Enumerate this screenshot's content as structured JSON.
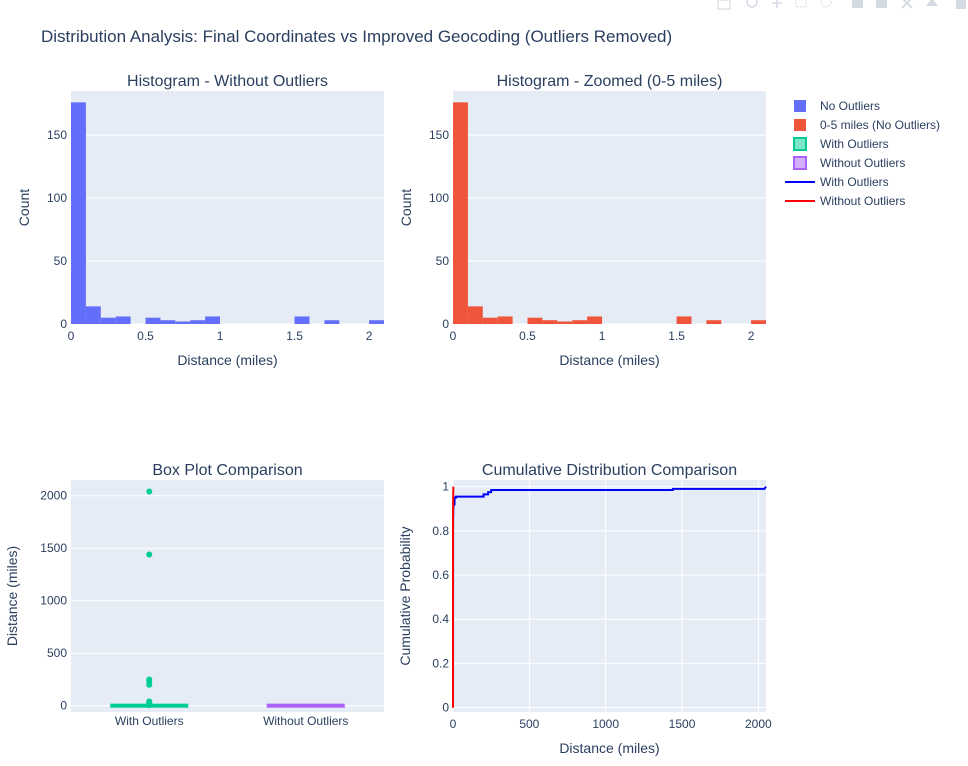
{
  "title": "Distribution Analysis: Final Coordinates vs Improved Geocoding (Outliers Removed)",
  "legend": {
    "position": "right",
    "items": [
      {
        "label": "No Outliers",
        "kind": "bar",
        "color": "#636efa"
      },
      {
        "label": "0-5 miles (No Outliers)",
        "kind": "bar",
        "color": "#ef553b"
      },
      {
        "label": "With Outliers",
        "kind": "box",
        "color": "#00cc96"
      },
      {
        "label": "Without Outliers",
        "kind": "box",
        "color": "#ab63fa"
      },
      {
        "label": "With Outliers",
        "kind": "line",
        "color": "#0000ff"
      },
      {
        "label": "Without Outliers",
        "kind": "line",
        "color": "#ff0000"
      }
    ]
  },
  "chart_data": [
    {
      "type": "bar",
      "title": "Histogram - Without Outliers",
      "xlabel": "Distance (miles)",
      "ylabel": "Count",
      "xlim": [
        0,
        2.1
      ],
      "ylim": [
        0,
        185
      ],
      "x_ticks": [
        "0",
        "0.5",
        "1",
        "1.5",
        "2"
      ],
      "y_ticks": [
        "0",
        "50",
        "100",
        "150"
      ],
      "bin_width": 0.1,
      "bin_starts": [
        0,
        0.1,
        0.2,
        0.3,
        0.4,
        0.5,
        0.6,
        0.7,
        0.8,
        0.9,
        1.0,
        1.1,
        1.2,
        1.3,
        1.4,
        1.5,
        1.6,
        1.7,
        1.8,
        1.9,
        2.0
      ],
      "values": [
        176,
        14,
        5,
        6,
        0,
        5,
        3,
        2,
        3,
        6,
        0,
        0,
        0,
        0,
        0,
        6,
        0,
        3,
        0,
        0,
        3
      ],
      "color": "#636efa",
      "series_name": "No Outliers"
    },
    {
      "type": "bar",
      "title": "Histogram - Zoomed (0-5 miles)",
      "xlabel": "Distance (miles)",
      "ylabel": "Count",
      "xlim": [
        0,
        2.1
      ],
      "ylim": [
        0,
        185
      ],
      "x_ticks": [
        "0",
        "0.5",
        "1",
        "1.5",
        "2"
      ],
      "y_ticks": [
        "0",
        "50",
        "100",
        "150"
      ],
      "bin_width": 0.1,
      "bin_starts": [
        0,
        0.1,
        0.2,
        0.3,
        0.4,
        0.5,
        0.6,
        0.7,
        0.8,
        0.9,
        1.0,
        1.1,
        1.2,
        1.3,
        1.4,
        1.5,
        1.6,
        1.7,
        1.8,
        1.9,
        2.0
      ],
      "values": [
        176,
        14,
        5,
        6,
        0,
        5,
        3,
        2,
        3,
        6,
        0,
        0,
        0,
        0,
        0,
        6,
        0,
        3,
        0,
        0,
        3
      ],
      "color": "#ef553b",
      "series_name": "0-5 miles (No Outliers)"
    },
    {
      "type": "box",
      "title": "Box Plot Comparison",
      "xlabel": "",
      "ylabel": "Distance (miles)",
      "ylim": [
        -60,
        2150
      ],
      "y_ticks": [
        "0",
        "500",
        "1000",
        "1500",
        "2000"
      ],
      "categories": [
        "With Outliers",
        "Without Outliers"
      ],
      "boxes": [
        {
          "name": "With Outliers",
          "color": "#00cc96",
          "q1": 0.02,
          "median": 0.05,
          "q3": 0.3,
          "lowerfence": 0,
          "upperfence": 2.1,
          "outliers": [
            2040,
            1440,
            250,
            230,
            200,
            40,
            30,
            20,
            10,
            5
          ]
        },
        {
          "name": "Without Outliers",
          "color": "#ab63fa",
          "q1": 0.02,
          "median": 0.05,
          "q3": 0.3,
          "lowerfence": 0,
          "upperfence": 2.1,
          "outliers": []
        }
      ]
    },
    {
      "type": "line",
      "title": "Cumulative Distribution Comparison",
      "xlabel": "Distance (miles)",
      "ylabel": "Cumulative Probability",
      "xlim": [
        0,
        2050
      ],
      "ylim": [
        -0.02,
        1.03
      ],
      "x_ticks": [
        "0",
        "500",
        "1000",
        "1500",
        "2000"
      ],
      "y_ticks": [
        "0",
        "0.2",
        "0.4",
        "0.6",
        "0.8",
        "1"
      ],
      "series": [
        {
          "name": "With Outliers",
          "color": "#0000ff",
          "x": [
            0,
            0.5,
            2,
            5,
            10,
            10,
            20,
            20,
            200,
            200,
            230,
            230,
            250,
            250,
            1440,
            1440,
            2040,
            2050
          ],
          "y": [
            0,
            0.85,
            0.9,
            0.92,
            0.92,
            0.95,
            0.95,
            0.955,
            0.955,
            0.965,
            0.965,
            0.975,
            0.975,
            0.985,
            0.985,
            0.99,
            0.99,
            1.0
          ]
        },
        {
          "name": "Without Outliers",
          "color": "#ff0000",
          "x": [
            0,
            0.1,
            0.5,
            1,
            2.1
          ],
          "y": [
            0,
            0.75,
            0.88,
            0.94,
            1.0
          ]
        }
      ]
    }
  ]
}
